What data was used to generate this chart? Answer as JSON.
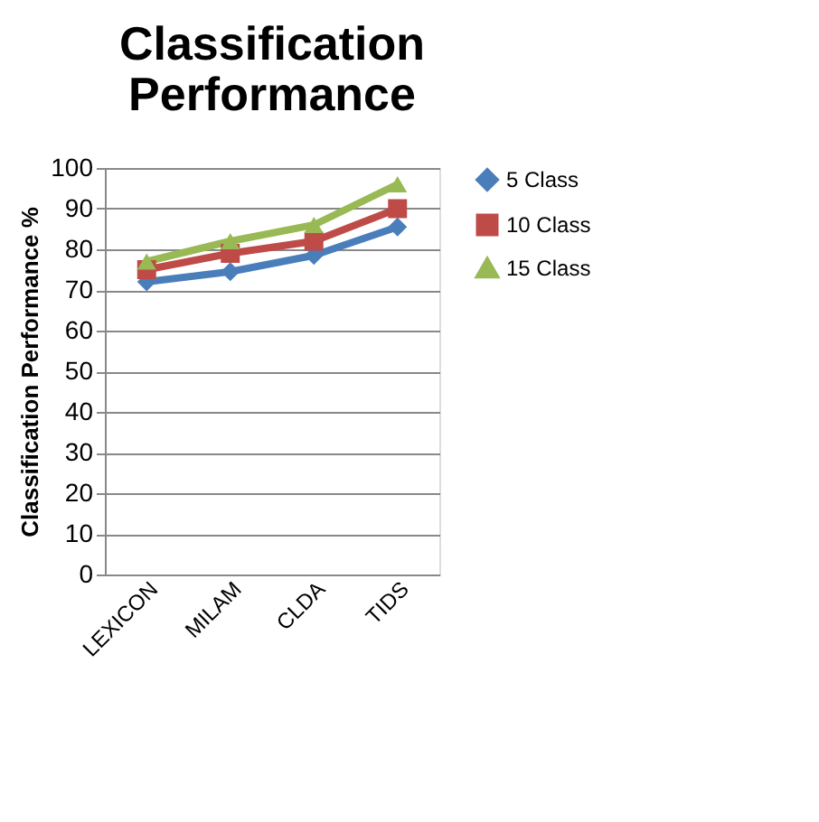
{
  "chart_data": {
    "type": "line",
    "title": [
      "Classification",
      "Performance"
    ],
    "ylabel": "Classification  Performance %",
    "categories": [
      "LEXICON",
      "MILAM",
      "CLDA",
      "TIDS"
    ],
    "series": [
      {
        "name": "5 Class",
        "color": "#4a7ebb",
        "marker": "diamond",
        "values": [
          72,
          74.5,
          78.5,
          85.5
        ]
      },
      {
        "name": "10 Class",
        "color": "#be4b48",
        "marker": "square",
        "values": [
          75,
          79,
          82,
          90
        ]
      },
      {
        "name": "15 Class",
        "color": "#98b954",
        "marker": "triangle",
        "values": [
          77,
          82,
          86,
          96
        ]
      }
    ],
    "ylim": [
      0,
      100
    ],
    "yticks": [
      0,
      10,
      20,
      30,
      40,
      50,
      60,
      70,
      80,
      90,
      100
    ],
    "grid": "y",
    "legend": "right",
    "line_style": "solid"
  }
}
